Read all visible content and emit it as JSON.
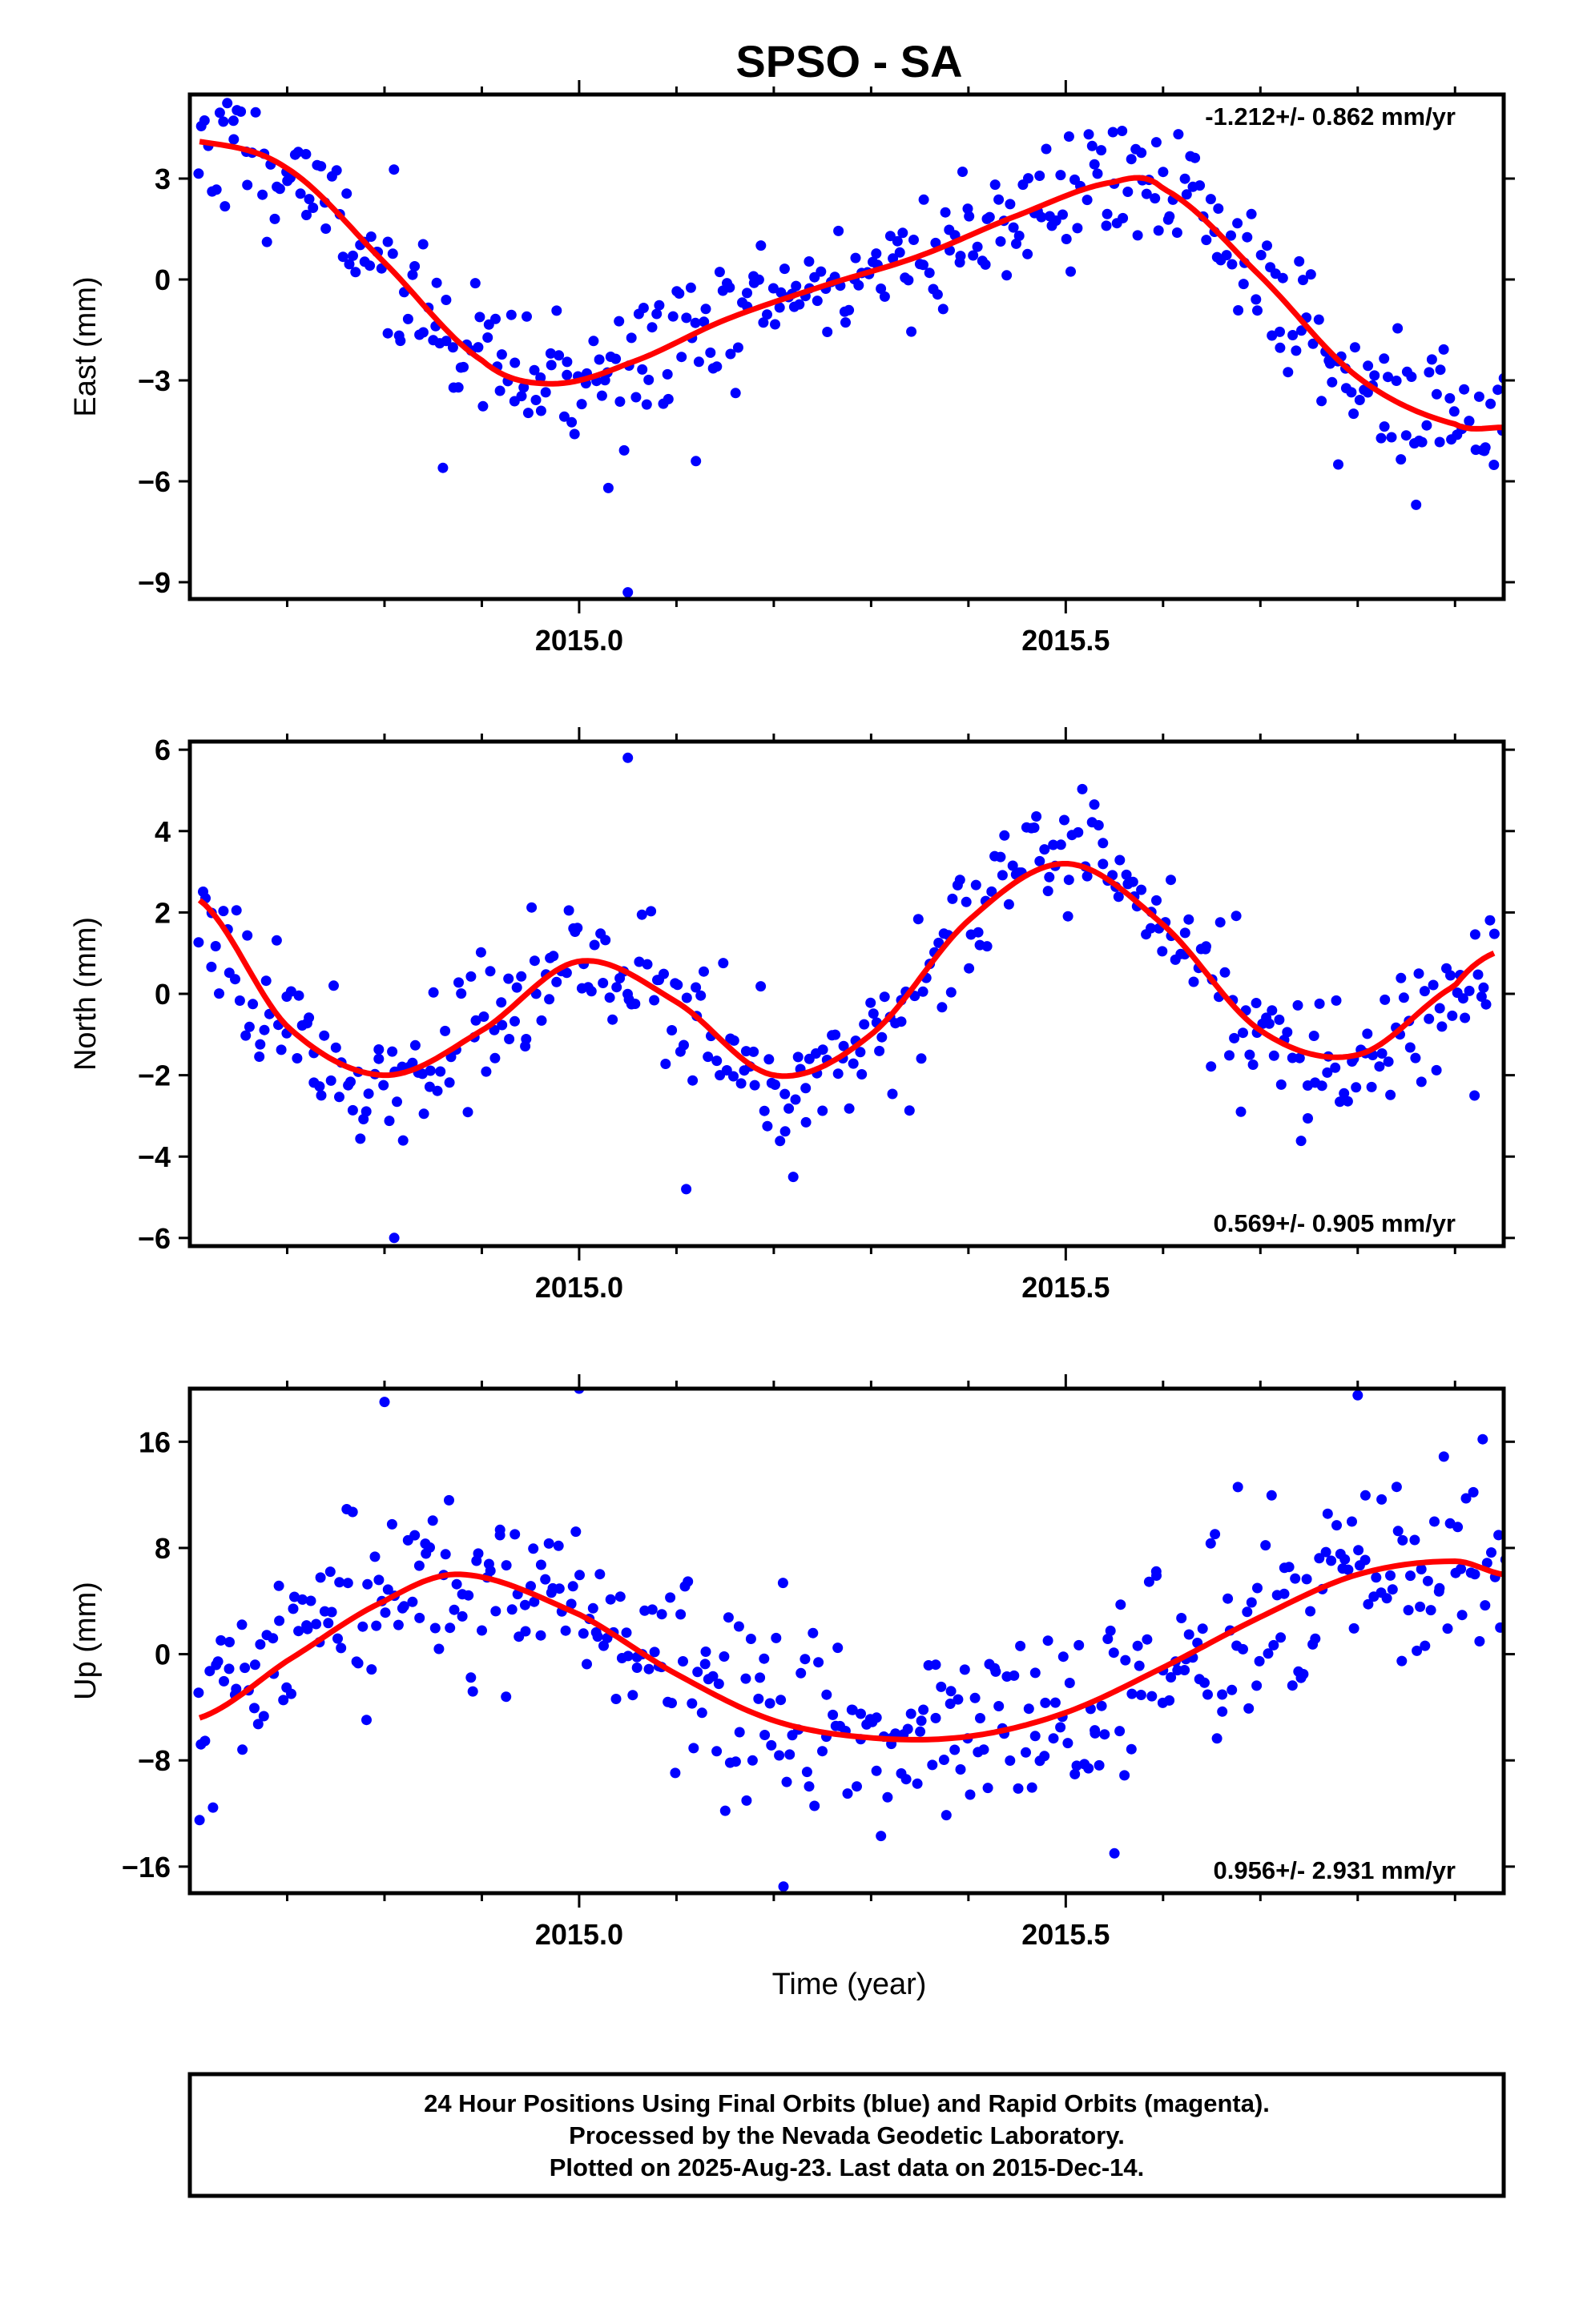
{
  "title": "SPSO - SA",
  "footer_lines": [
    "24 Hour Positions Using Final Orbits (blue) and Rapid Orbits (magenta).",
    "Processed by the Nevada Geodetic Laboratory.",
    "Plotted on 2025-Aug-23. Last data on 2015-Dec-14."
  ],
  "colors": {
    "data": "#0000ff",
    "fit": "#ff0000",
    "frame": "#000000"
  },
  "chart_data": [
    {
      "type": "scatter",
      "ylabel": "East (mm)",
      "xlim": [
        2014.6,
        2015.95
      ],
      "ylim": [
        -9.5,
        5.5
      ],
      "yticks": [
        3,
        0,
        -3,
        -6,
        -9
      ],
      "ytick_labels": [
        "3",
        "0",
        "−3",
        "−6",
        "−9"
      ],
      "xticks": [
        2015.0,
        2015.5
      ],
      "xtick_labels": [
        "2015.0",
        "2015.5"
      ],
      "rate_text": "-1.212+/- 0.862 mm/yr",
      "rate_position": "top-right",
      "fit": {
        "x": [
          2014.61,
          2014.7,
          2014.8,
          2014.9,
          2014.97,
          2015.05,
          2015.15,
          2015.25,
          2015.35,
          2015.45,
          2015.55,
          2015.6,
          2015.7,
          2015.8,
          2015.9,
          2015.95
        ],
        "y": [
          4.1,
          3.3,
          0.5,
          -2.4,
          -3.1,
          -2.5,
          -1.2,
          -0.2,
          0.7,
          1.9,
          2.9,
          2.7,
          0.1,
          -2.9,
          -4.3,
          -4.4
        ]
      },
      "scatter": {
        "noise": 1.0,
        "seed": 11,
        "count": 400,
        "outliers": [
          [
            2014.86,
            -5.6
          ],
          [
            2015.05,
            -9.3
          ],
          [
            2015.03,
            -6.2
          ],
          [
            2015.12,
            -5.4
          ],
          [
            2015.86,
            -6.7
          ],
          [
            2015.78,
            -5.5
          ]
        ]
      }
    },
    {
      "type": "scatter",
      "ylabel": "North (mm)",
      "xlim": [
        2014.6,
        2015.95
      ],
      "ylim": [
        -6.2,
        6.2
      ],
      "yticks": [
        6,
        4,
        2,
        0,
        -2,
        -4,
        -6
      ],
      "ytick_labels": [
        "6",
        "4",
        "2",
        "0",
        "−2",
        "−4",
        "−6"
      ],
      "xticks": [
        2015.0,
        2015.5
      ],
      "xtick_labels": [
        "2015.0",
        "2015.5"
      ],
      "rate_text": "0.569+/- 0.905 mm/yr",
      "rate_position": "bottom-right",
      "fit": {
        "x": [
          2014.61,
          2014.7,
          2014.8,
          2014.9,
          2015.0,
          2015.1,
          2015.2,
          2015.3,
          2015.4,
          2015.5,
          2015.6,
          2015.7,
          2015.8,
          2015.9,
          2015.94
        ],
        "y": [
          2.3,
          -0.8,
          -2.0,
          -0.9,
          0.8,
          -0.2,
          -2.0,
          -1.0,
          1.8,
          3.2,
          1.7,
          -0.9,
          -1.5,
          0.2,
          1.0
        ]
      },
      "scatter": {
        "noise": 0.8,
        "seed": 23,
        "count": 380,
        "outliers": [
          [
            2015.05,
            5.8
          ],
          [
            2014.81,
            -6.0
          ],
          [
            2015.22,
            -4.5
          ],
          [
            2015.68,
            -2.9
          ],
          [
            2015.92,
            -2.5
          ],
          [
            2015.11,
            -4.8
          ]
        ]
      }
    },
    {
      "type": "scatter",
      "ylabel": "Up (mm)",
      "xlabel": "Time (year)",
      "xlim": [
        2014.6,
        2015.95
      ],
      "ylim": [
        -18,
        20
      ],
      "yticks": [
        16,
        8,
        0,
        -8,
        -16
      ],
      "ytick_labels": [
        "16",
        "8",
        "0",
        "−8",
        "−16"
      ],
      "xticks": [
        2015.0,
        2015.5
      ],
      "xtick_labels": [
        "2015.0",
        "2015.5"
      ],
      "rate_text": "0.956+/- 2.931 mm/yr",
      "rate_position": "bottom-right",
      "fit": {
        "x": [
          2014.61,
          2014.7,
          2014.8,
          2014.88,
          2015.0,
          2015.1,
          2015.2,
          2015.3,
          2015.4,
          2015.5,
          2015.6,
          2015.7,
          2015.8,
          2015.9,
          2015.95
        ],
        "y": [
          -4.8,
          -0.5,
          4.0,
          6.0,
          3.0,
          -1.5,
          -5.0,
          -6.3,
          -6.2,
          -4.4,
          -1.0,
          2.8,
          6.0,
          7.0,
          6.0
        ]
      },
      "scatter": {
        "noise": 3.5,
        "seed": 37,
        "count": 420,
        "outliers": [
          [
            2015.0,
            20.0
          ],
          [
            2014.8,
            19.0
          ],
          [
            2015.8,
            19.5
          ],
          [
            2015.21,
            -17.5
          ],
          [
            2015.55,
            -15.0
          ],
          [
            2014.61,
            -12.5
          ]
        ]
      }
    }
  ]
}
